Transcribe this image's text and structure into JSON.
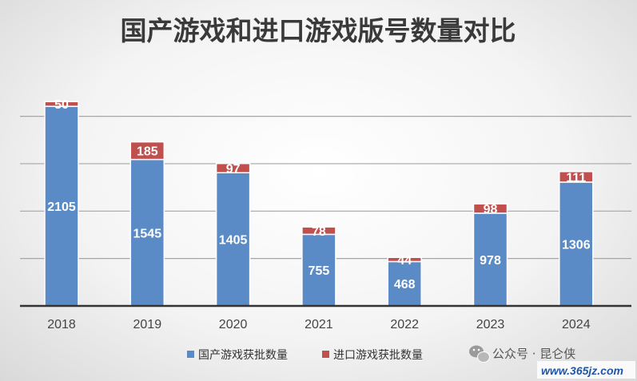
{
  "chart_data": {
    "type": "bar",
    "stacked": true,
    "title": "国产游戏和进口游戏版号数量对比",
    "categories": [
      "2018",
      "2019",
      "2020",
      "2021",
      "2022",
      "2023",
      "2024"
    ],
    "series": [
      {
        "name": "国产游戏获批数量",
        "values": [
          2105,
          1545,
          1405,
          755,
          468,
          978,
          1306
        ],
        "color": "#5b8bc6"
      },
      {
        "name": "进口游戏获批数量",
        "values": [
          50,
          185,
          97,
          78,
          44,
          98,
          111
        ],
        "color": "#c0504d"
      }
    ],
    "ylim": [
      0,
      2500
    ],
    "grid": true,
    "legend": "bottom"
  },
  "watermark": {
    "account": "公众号 · 昆仑侠",
    "url": "www.365jz.com",
    "icon": "wechat-icon"
  }
}
